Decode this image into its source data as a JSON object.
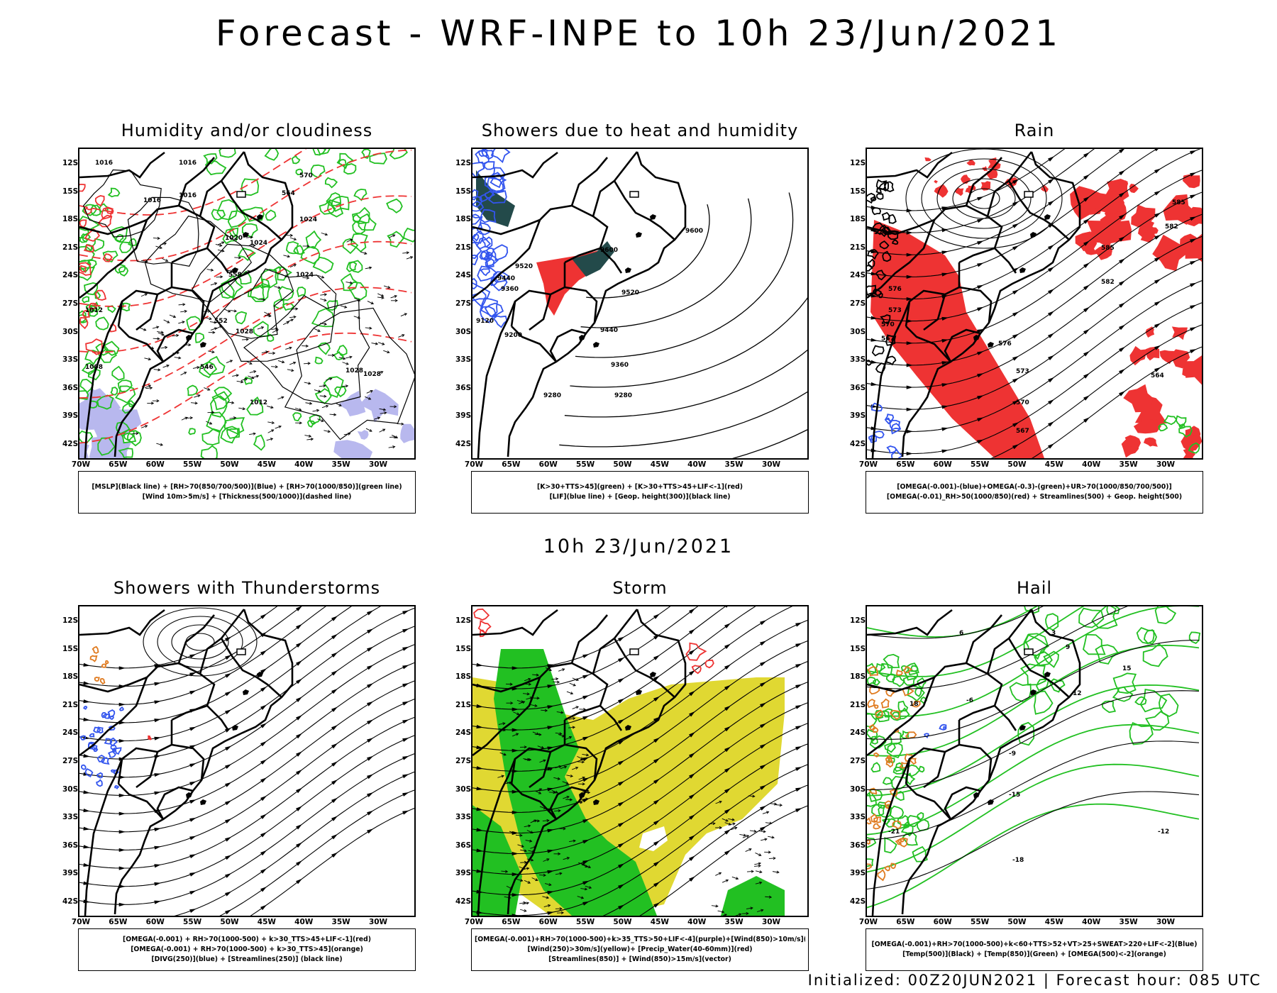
{
  "header": {
    "title": "Forecast - WRF-INPE to 10h 23/Jun/2021"
  },
  "mid_title": "10h 23/Jun/2021",
  "footer": "Initialized: 00Z20JUN2021 | Forecast hour: 085 UTC",
  "lat_labels": [
    "12S",
    "15S",
    "18S",
    "21S",
    "24S",
    "27S",
    "30S",
    "33S",
    "36S",
    "39S",
    "42S"
  ],
  "lon_labels": [
    "70W",
    "65W",
    "60W",
    "55W",
    "50W",
    "45W",
    "40W",
    "35W",
    "30W"
  ],
  "colors": {
    "green": "#22c022",
    "red": "#ee3333",
    "blue": "#3355ee",
    "yellow": "#e0d832",
    "orange": "#e07b20",
    "dark_teal": "#234a4a",
    "lavender": "#b8b8ee"
  },
  "panels": [
    {
      "title": "Humidity and/or cloudiness",
      "legend": [
        "[MSLP](Black line) + [RH>70(850/700/500)](Blue) + [RH>70(1000/850)](green line)",
        "[Wind 10m>5m/s] + [Thickness(500/1000)](dashed line)"
      ],
      "labels": [
        "1016",
        "1016",
        "1016",
        "1016",
        "1020",
        "1024",
        "1024",
        "1024",
        "1028",
        "1028",
        "1028",
        "1012",
        "1012",
        "1008",
        "570",
        "564",
        "558",
        "552",
        "546"
      ]
    },
    {
      "title": "Showers due to heat and humidity",
      "legend": [
        "[K>30+TTS>45](green) + [K>30+TTS>45+LIF<-1](red)",
        "[LIF](blue line) + [Geop. height(300)](black line)"
      ],
      "labels": [
        "9600",
        "9600",
        "9520",
        "9520",
        "9440",
        "9440",
        "9360",
        "9360",
        "9280",
        "9280",
        "9200",
        "9120"
      ]
    },
    {
      "title": "Rain",
      "legend": [
        "[OMEGA(-0.001)-(blue)+OMEGA(-0.3)-(green)+UR>70(1000/850/700/500)]",
        "[OMEGA(-0.01)_RH>50(1000/850)(red) + Streamlines(500) + Geop. height(500)"
      ],
      "labels": [
        "585",
        "582",
        "585",
        "582",
        "579",
        "576",
        "573",
        "570",
        "567",
        "564",
        "576",
        "573",
        "570",
        "567"
      ]
    },
    {
      "title": "Showers with Thunderstorms",
      "legend": [
        "[OMEGA(-0.001) + RH>70(1000-500) + k>30_TTS>45+LIF<-1](red)",
        "[OMEGA(-0.001) + RH>70(1000-500) + k>30_TTS>45](orange)",
        "[DIVG(250)](blue) + [Streamlines(250)] (black line)"
      ],
      "labels": []
    },
    {
      "title": "Storm",
      "legend": [
        "[OMEGA(-0.001)+RH>70(1000-500)+k>35_TTS>50+LIF<-4](purple)+[Wind(850)>10m/s](green)",
        "[Wind(250)>30m/s](yellow)+ [Precip_Water(40-60mm)](red)",
        "[Streamlines(850)] + [Wind(850)>15m/s](vector)"
      ],
      "labels": []
    },
    {
      "title": "Hail",
      "legend": [
        "[OMEGA(-0.001)+RH>70(1000-500)+k<60+TTS>52+VT>25+SWEAT>220+LIF<-2](Blue)",
        "[Temp(500)](Black) + [Temp(850)](Green) + [OMEGA(500)<-2](orange)"
      ],
      "labels": [
        "-6",
        "-9",
        "-12",
        "-15",
        "-18",
        "-21",
        "6",
        "9",
        "12",
        "15",
        "18",
        "3"
      ]
    }
  ]
}
